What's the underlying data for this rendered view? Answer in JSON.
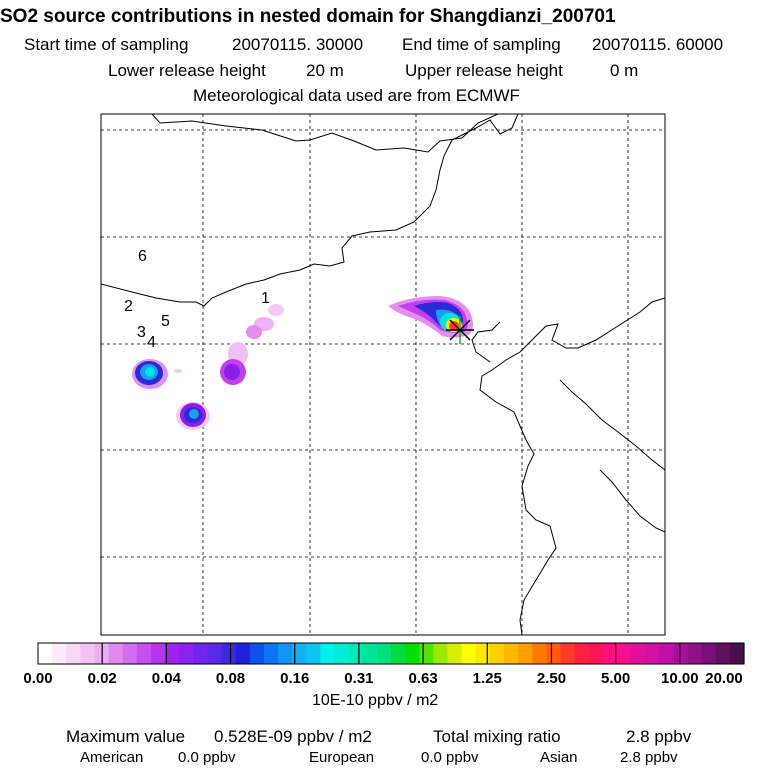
{
  "header": {
    "title": "SO2 source contributions in nested domain for Shangdianzi_200701",
    "start_label": "Start time of sampling",
    "start_value": "20070115. 30000",
    "end_label": "End time of sampling",
    "end_value": "20070115. 60000",
    "lower_label": "Lower release height",
    "lower_value": "20 m",
    "upper_label": "Upper release height",
    "upper_value": "0 m",
    "met_line": "Meteorological data used are from ECMWF"
  },
  "map": {
    "source_labels": [
      "1",
      "2",
      "3",
      "4",
      "5",
      "6"
    ],
    "receptor_marker": "star",
    "plume_colors": [
      "#f5c8f5",
      "#e58ef0",
      "#c040f0",
      "#8a1fe8",
      "#2a2ad8",
      "#1e9cf0",
      "#00e6e6",
      "#ffee00",
      "#ff3a20"
    ]
  },
  "colorbar": {
    "ticks": [
      "0.00",
      "0.02",
      "0.04",
      "0.08",
      "0.16",
      "0.31",
      "0.63",
      "1.25",
      "2.50",
      "5.00",
      "10.00",
      "20.00"
    ],
    "unit": "10E-10 ppbv / m2",
    "colors": [
      "#ffffff",
      "#fce9fc",
      "#f8d6f8",
      "#f2c2f4",
      "#ebaef0",
      "#e08af0",
      "#d26cf2",
      "#c450f2",
      "#b535f2",
      "#a020f0",
      "#8a22f0",
      "#7026ec",
      "#5a2ae6",
      "#3e28e0",
      "#2020d8",
      "#1050ec",
      "#0c74f2",
      "#1095f4",
      "#14aef4",
      "#10c4f0",
      "#00f0f0",
      "#00ecd4",
      "#00e8b4",
      "#00e49a",
      "#00e07c",
      "#00dc40",
      "#00e000",
      "#50e400",
      "#a0e800",
      "#d8ee00",
      "#ffff00",
      "#ffe800",
      "#ffd000",
      "#ffb800",
      "#ffa000",
      "#ff7a00",
      "#ff5a10",
      "#ff3a28",
      "#ff2040",
      "#ff1458",
      "#ff1080",
      "#f01090",
      "#e0109c",
      "#d010a6",
      "#c010aa",
      "#a8109c",
      "#90108c",
      "#781078",
      "#601060",
      "#481048"
    ]
  },
  "footer": {
    "max_label": "Maximum value",
    "max_value": "0.528E-09 ppbv / m2",
    "total_label": "Total mixing ratio",
    "total_value": "2.8 ppbv",
    "american_label": "American",
    "american_value": "0.0 ppbv",
    "european_label": "European",
    "european_value": "0.0 ppbv",
    "asian_label": "Asian",
    "asian_value": "2.8 ppbv"
  }
}
